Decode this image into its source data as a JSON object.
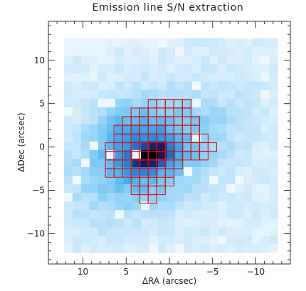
{
  "chart_data": {
    "type": "heatmap",
    "title": "Emission line S/N extraction",
    "xlabel": "ΔRA (arcsec)",
    "ylabel": "ΔDec (arcsec)",
    "xlim": [
      14,
      -14
    ],
    "ylim": [
      -13.5,
      14.5
    ],
    "x_inverted": true,
    "xticks": [
      10,
      5,
      0,
      -5,
      -10
    ],
    "yticks": [
      -10,
      -5,
      0,
      5,
      10
    ],
    "xtick_labels": [
      "10",
      "5",
      "0",
      "−5",
      "−10"
    ],
    "ytick_labels": [
      "−10",
      "−5",
      "0",
      "5",
      "10"
    ],
    "map": {
      "x_range": [
        12.2,
        -12.2
      ],
      "y_range": [
        -12.2,
        12.2
      ],
      "pixel_size": 0.99,
      "peak": [
        2.0,
        -0.9
      ],
      "colors": [
        "#ffffff",
        "#dff1fc",
        "#b6e0fa",
        "#7ccaf4",
        "#3fa8ec",
        "#1f74d0",
        "#173b8e",
        "#220d3a",
        "#000000"
      ],
      "empty_region": {
        "x_range": [
          12.2,
          6.9
        ],
        "y_range": [
          10.2,
          12.2
        ]
      }
    },
    "extraction_region": {
      "color": "#dd1111",
      "pixel_size": 0.99,
      "rows": [
        {
          "y": 5.0,
          "x_from": 2.45,
          "x_to": -2.5
        },
        {
          "y": 4.0,
          "x_from": 4.43,
          "x_to": -2.5
        },
        {
          "y": 3.0,
          "x_from": 5.42,
          "x_to": -3.49
        },
        {
          "y": 2.0,
          "x_from": 6.41,
          "x_to": -3.49
        },
        {
          "y": 1.0,
          "x_from": 6.41,
          "x_to": -4.48
        },
        {
          "y": 0.0,
          "x_from": 7.4,
          "x_to": -5.47
        },
        {
          "y": -1.0,
          "x_from": 7.4,
          "x_to": -4.48
        },
        {
          "y": -2.0,
          "x_from": 7.4,
          "x_to": -1.51
        },
        {
          "y": -3.0,
          "x_from": 7.4,
          "x_to": -0.52
        },
        {
          "y": -4.0,
          "x_from": 4.43,
          "x_to": -0.52
        },
        {
          "y": -5.0,
          "x_from": 4.43,
          "x_to": 0.47
        },
        {
          "y": -6.0,
          "x_from": 3.44,
          "x_to": 1.46
        }
      ]
    }
  }
}
